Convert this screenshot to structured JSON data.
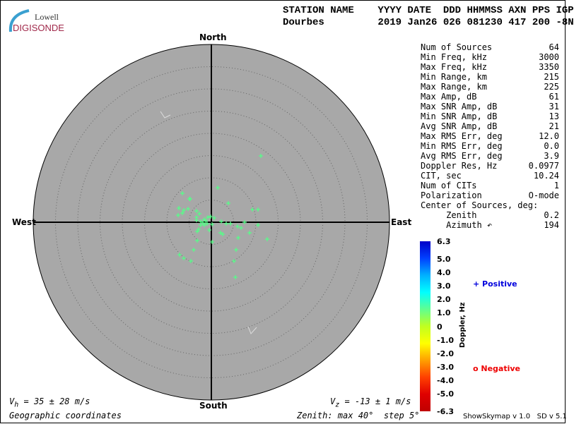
{
  "logo": {
    "line1": "Lowell",
    "line2": "DIGISONDE"
  },
  "header": {
    "labels": "STATION NAME    YYYY DATE  DDD HHMMSS AXN PPS IGP",
    "values": "Dourbes         2019 Jan26 026 081230 417 200 -8N"
  },
  "directions": {
    "north": "North",
    "south": "South",
    "east": "East",
    "west": "West"
  },
  "stats": [
    {
      "label": "Num of Sources",
      "value": "64"
    },
    {
      "label": "Min Freq, kHz",
      "value": "3000"
    },
    {
      "label": "Max Freq, kHz",
      "value": "3350"
    },
    {
      "label": "Min Range, km",
      "value": "215"
    },
    {
      "label": "Max Range, km",
      "value": "225"
    },
    {
      "label": "Max Amp, dB",
      "value": "61"
    },
    {
      "label": "Max SNR Amp, dB",
      "value": "31"
    },
    {
      "label": "Min SNR Amp, dB",
      "value": "13"
    },
    {
      "label": "Avg SNR Amp, dB",
      "value": "21"
    },
    {
      "label": "Max RMS Err, deg",
      "value": "12.0"
    },
    {
      "label": "Min RMS Err, deg",
      "value": "0.0"
    },
    {
      "label": "Avg RMS Err, deg",
      "value": "3.9"
    },
    {
      "label": "Doppler Res, Hz",
      "value": "0.0977"
    },
    {
      "label": "CIT, sec",
      "value": "10.24"
    },
    {
      "label": "Num of CITs",
      "value": "1"
    },
    {
      "label": "Polarization",
      "value": "O-mode"
    },
    {
      "label": "Center of Sources, deg:",
      "value": ""
    },
    {
      "label": "     Zenith",
      "value": "0.2"
    },
    {
      "label": "     Azimuth ↶",
      "value": "194"
    }
  ],
  "colorbar": {
    "title": "Doppler, Hz",
    "ticks": [
      "6.3",
      "5.0",
      "4.0",
      "3.0",
      "2.0",
      "1.0",
      "0",
      "-1.0",
      "-2.0",
      "-3.0",
      "-4.0",
      "-5.0",
      "-6.3"
    ]
  },
  "legend": {
    "positive": "Positive",
    "negative": "Negative",
    "positive_color": "#0000dd",
    "negative_color": "#ee0000"
  },
  "footer": {
    "vh": "V",
    "vh_sub": "h",
    "vh_val": " = 35 ± 28 m/s",
    "vz": "V",
    "vz_sub": "z",
    "vz_val": " = -13 ± 1 m/s",
    "coords": "Geographic coordinates",
    "zenith": "Zenith: max 40°  step 5°",
    "version": "ShowSkymap v 1.0   SD v 5.1"
  },
  "plot": {
    "max_zenith_deg": 40,
    "step_deg": 5,
    "disk_color": "#a8a8a8",
    "point_color": "#55ff88"
  }
}
